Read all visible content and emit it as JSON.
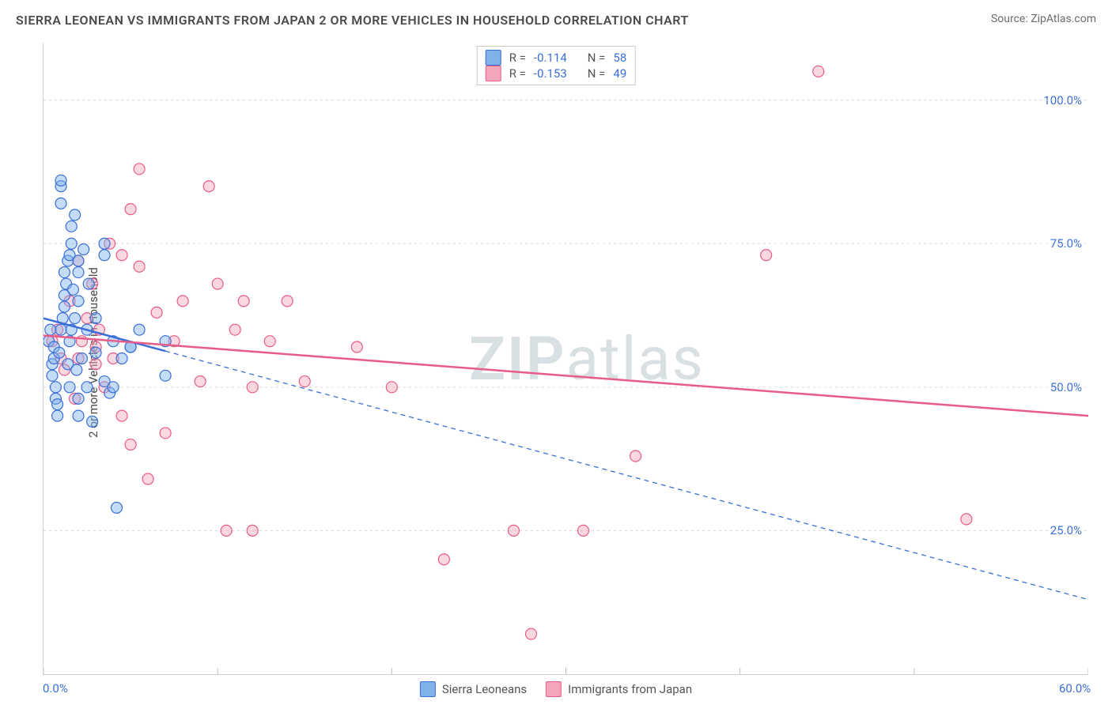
{
  "title": "SIERRA LEONEAN VS IMMIGRANTS FROM JAPAN 2 OR MORE VEHICLES IN HOUSEHOLD CORRELATION CHART",
  "source": "Source: ZipAtlas.com",
  "ylabel": "2 or more Vehicles in Household",
  "watermark_bold": "ZIP",
  "watermark_rest": "atlas",
  "legend_bottom": {
    "series_a_label": "Sierra Leoneans",
    "series_b_label": "Immigrants from Japan"
  },
  "legend_top": {
    "rows": [
      {
        "r_label": "R =",
        "r_value": "-0.114",
        "n_label": "N =",
        "n_value": "58"
      },
      {
        "r_label": "R =",
        "r_value": "-0.153",
        "n_label": "N =",
        "n_value": "49"
      }
    ]
  },
  "chart": {
    "type": "scatter",
    "xlim": [
      0,
      60
    ],
    "ylim": [
      0,
      110
    ],
    "xtick_labels": [
      "0.0%",
      "60.0%"
    ],
    "xtick_positions": [
      0,
      60
    ],
    "ytick_labels": [
      "25.0%",
      "50.0%",
      "75.0%",
      "100.0%"
    ],
    "ytick_positions": [
      25,
      50,
      75,
      100
    ],
    "grid_color": "#d8d8d8",
    "grid_dash": "3,4",
    "xtick_minor": [
      0,
      10,
      20,
      30,
      40,
      50,
      60
    ],
    "background_color": "#ffffff",
    "axis_label_color": "#3a6fd8",
    "marker_radius": 7,
    "series_a": {
      "name": "Sierra Leoneans",
      "fill": "#7fb1ea",
      "stroke": "#3a6fd8",
      "fill_opacity": 0.45,
      "points": [
        [
          0.3,
          58
        ],
        [
          0.4,
          60
        ],
        [
          0.5,
          52
        ],
        [
          0.5,
          54
        ],
        [
          0.6,
          55
        ],
        [
          0.6,
          57
        ],
        [
          0.7,
          48
        ],
        [
          0.7,
          50
        ],
        [
          0.8,
          45
        ],
        [
          0.8,
          47
        ],
        [
          0.9,
          56
        ],
        [
          1.0,
          85
        ],
        [
          1.0,
          86
        ],
        [
          1.0,
          82
        ],
        [
          1.0,
          60
        ],
        [
          1.1,
          62
        ],
        [
          1.2,
          70
        ],
        [
          1.2,
          66
        ],
        [
          1.2,
          64
        ],
        [
          1.3,
          68
        ],
        [
          1.4,
          72
        ],
        [
          1.4,
          54
        ],
        [
          1.5,
          58
        ],
        [
          1.5,
          50
        ],
        [
          1.5,
          73
        ],
        [
          1.6,
          75
        ],
        [
          1.6,
          78
        ],
        [
          1.6,
          60
        ],
        [
          1.7,
          67
        ],
        [
          1.8,
          80
        ],
        [
          1.8,
          62
        ],
        [
          1.9,
          53
        ],
        [
          2.0,
          65
        ],
        [
          2.0,
          70
        ],
        [
          2.0,
          72
        ],
        [
          2.0,
          45
        ],
        [
          2.0,
          48
        ],
        [
          2.2,
          55
        ],
        [
          2.3,
          74
        ],
        [
          2.5,
          60
        ],
        [
          2.5,
          50
        ],
        [
          2.6,
          68
        ],
        [
          2.8,
          44
        ],
        [
          3.0,
          56
        ],
        [
          3.0,
          62
        ],
        [
          3.5,
          51
        ],
        [
          3.5,
          73
        ],
        [
          3.5,
          75
        ],
        [
          3.8,
          49
        ],
        [
          4.0,
          58
        ],
        [
          4.0,
          50
        ],
        [
          4.2,
          29
        ],
        [
          4.5,
          55
        ],
        [
          5.0,
          57
        ],
        [
          5.0,
          57
        ],
        [
          5.5,
          60
        ],
        [
          7.0,
          58
        ],
        [
          7.0,
          52
        ]
      ],
      "trend": {
        "x1": 0,
        "y1": 62,
        "x2": 60,
        "y2": 13,
        "solid_until_x": 7,
        "width": 2.5
      }
    },
    "series_b": {
      "name": "Immigrants from Japan",
      "fill": "#f6a6bb",
      "stroke": "#e85d88",
      "fill_opacity": 0.45,
      "points": [
        [
          0.5,
          58
        ],
        [
          0.8,
          60
        ],
        [
          1.0,
          55
        ],
        [
          1.2,
          53
        ],
        [
          1.5,
          65
        ],
        [
          1.8,
          48
        ],
        [
          2.0,
          72
        ],
        [
          2.0,
          55
        ],
        [
          2.2,
          58
        ],
        [
          2.5,
          62
        ],
        [
          2.8,
          68
        ],
        [
          3.0,
          54
        ],
        [
          3.0,
          57
        ],
        [
          3.2,
          60
        ],
        [
          3.5,
          50
        ],
        [
          3.8,
          75
        ],
        [
          4.0,
          55
        ],
        [
          4.5,
          73
        ],
        [
          4.5,
          45
        ],
        [
          5.0,
          81
        ],
        [
          5.0,
          40
        ],
        [
          5.5,
          71
        ],
        [
          5.5,
          88
        ],
        [
          6.0,
          34
        ],
        [
          6.5,
          63
        ],
        [
          7.0,
          42
        ],
        [
          7.5,
          58
        ],
        [
          8.0,
          65
        ],
        [
          9.0,
          51
        ],
        [
          9.5,
          85
        ],
        [
          10.0,
          68
        ],
        [
          10.5,
          25
        ],
        [
          11.0,
          60
        ],
        [
          11.5,
          65
        ],
        [
          12.0,
          50
        ],
        [
          12.0,
          25
        ],
        [
          13.0,
          58
        ],
        [
          14.0,
          65
        ],
        [
          15.0,
          51
        ],
        [
          18.0,
          57
        ],
        [
          20.0,
          50
        ],
        [
          23.0,
          20
        ],
        [
          27.0,
          25
        ],
        [
          28.0,
          7
        ],
        [
          31.0,
          25
        ],
        [
          34.0,
          38
        ],
        [
          41.5,
          73
        ],
        [
          44.5,
          105
        ],
        [
          53.0,
          27
        ]
      ],
      "trend": {
        "x1": 0,
        "y1": 59,
        "x2": 60,
        "y2": 45,
        "solid_until_x": 60,
        "width": 2.5
      }
    }
  }
}
